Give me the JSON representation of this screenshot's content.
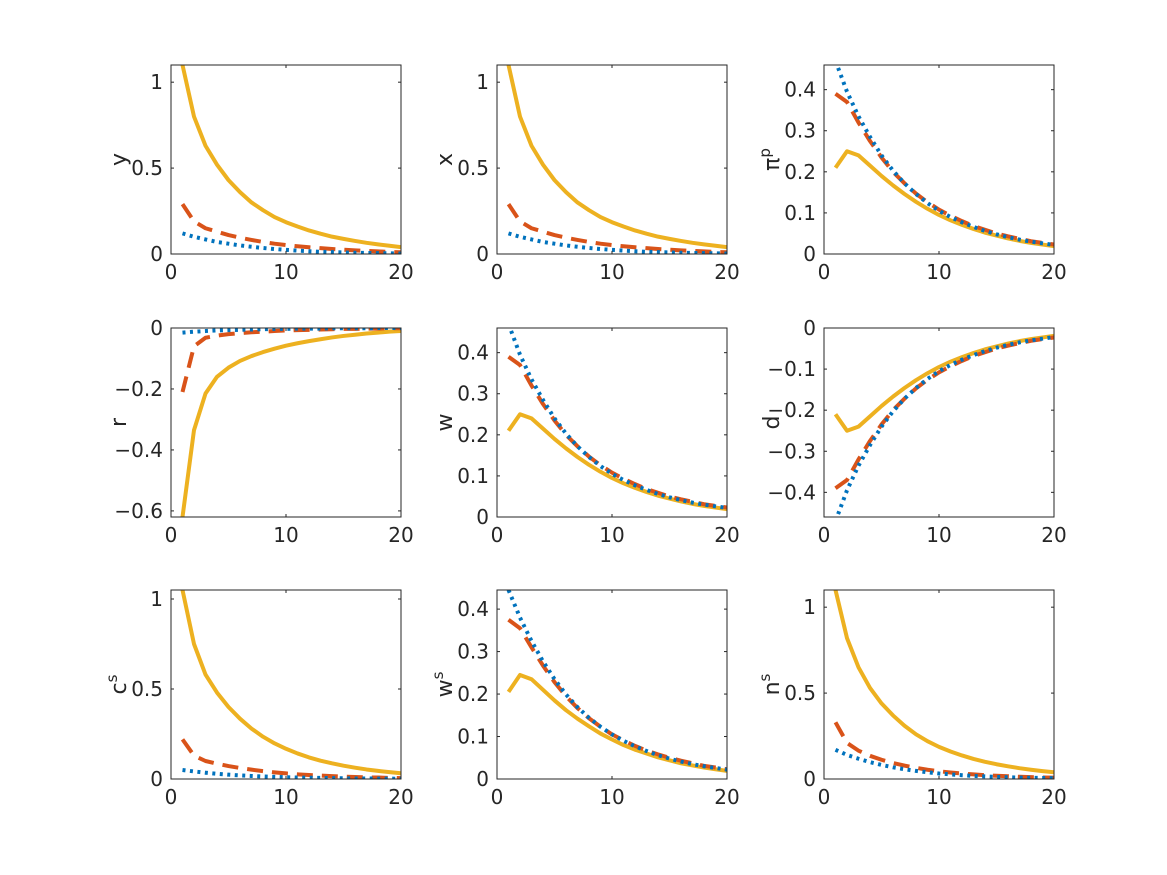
{
  "chart_data": [
    {
      "type": "line",
      "ylabel": "y",
      "ylabel_sup": "",
      "xlim": [
        0,
        20
      ],
      "ylim": [
        0,
        1.1
      ],
      "xticks": [
        0,
        10,
        20
      ],
      "yticks": [
        0,
        0.5,
        1
      ],
      "ytick_labels": [
        "0",
        "0.5",
        "1"
      ],
      "series": [
        {
          "style": "solid",
          "color": "#EDB120",
          "values": [
            1.1,
            0.8,
            0.63,
            0.52,
            0.43,
            0.36,
            0.3,
            0.255,
            0.215,
            0.185,
            0.16,
            0.137,
            0.118,
            0.101,
            0.088,
            0.076,
            0.065,
            0.056,
            0.048,
            0.04
          ]
        },
        {
          "style": "dashed",
          "color": "#D95319",
          "values": [
            0.29,
            0.19,
            0.15,
            0.13,
            0.11,
            0.095,
            0.082,
            0.07,
            0.06,
            0.052,
            0.045,
            0.039,
            0.034,
            0.029,
            0.025,
            0.021,
            0.018,
            0.015,
            0.012,
            0.01
          ]
        },
        {
          "style": "dotted",
          "color": "#0072BD",
          "values": [
            0.12,
            0.1,
            0.085,
            0.07,
            0.06,
            0.05,
            0.042,
            0.035,
            0.029,
            0.024,
            0.02,
            0.016,
            0.013,
            0.011,
            0.009,
            0.007,
            0.006,
            0.005,
            0.004,
            0.003
          ]
        }
      ]
    },
    {
      "type": "line",
      "ylabel": "x",
      "ylabel_sup": "",
      "xlim": [
        0,
        20
      ],
      "ylim": [
        0,
        1.1
      ],
      "xticks": [
        0,
        10,
        20
      ],
      "yticks": [
        0,
        0.5,
        1
      ],
      "ytick_labels": [
        "0",
        "0.5",
        "1"
      ],
      "series": [
        {
          "style": "solid",
          "color": "#EDB120",
          "values": [
            1.1,
            0.8,
            0.63,
            0.52,
            0.43,
            0.36,
            0.3,
            0.255,
            0.215,
            0.185,
            0.16,
            0.137,
            0.118,
            0.101,
            0.088,
            0.076,
            0.065,
            0.056,
            0.048,
            0.04
          ]
        },
        {
          "style": "dashed",
          "color": "#D95319",
          "values": [
            0.29,
            0.19,
            0.15,
            0.13,
            0.11,
            0.095,
            0.082,
            0.07,
            0.06,
            0.052,
            0.045,
            0.039,
            0.034,
            0.029,
            0.025,
            0.021,
            0.018,
            0.015,
            0.012,
            0.01
          ]
        },
        {
          "style": "dotted",
          "color": "#0072BD",
          "values": [
            0.12,
            0.1,
            0.085,
            0.07,
            0.06,
            0.05,
            0.042,
            0.035,
            0.029,
            0.024,
            0.02,
            0.016,
            0.013,
            0.011,
            0.009,
            0.007,
            0.006,
            0.005,
            0.004,
            0.003
          ]
        }
      ]
    },
    {
      "type": "line",
      "ylabel": "π",
      "ylabel_sup": "p",
      "xlim": [
        0,
        20
      ],
      "ylim": [
        0,
        0.46
      ],
      "xticks": [
        0,
        10,
        20
      ],
      "yticks": [
        0,
        0.1,
        0.2,
        0.3,
        0.4
      ],
      "ytick_labels": [
        "0",
        "0.1",
        "0.2",
        "0.3",
        "0.4"
      ],
      "series": [
        {
          "style": "solid",
          "color": "#EDB120",
          "values": [
            0.21,
            0.25,
            0.24,
            0.215,
            0.19,
            0.167,
            0.146,
            0.127,
            0.11,
            0.095,
            0.082,
            0.071,
            0.061,
            0.052,
            0.045,
            0.038,
            0.032,
            0.027,
            0.023,
            0.019
          ]
        },
        {
          "style": "dashed",
          "color": "#D95319",
          "values": [
            0.39,
            0.37,
            0.32,
            0.275,
            0.235,
            0.2,
            0.172,
            0.147,
            0.126,
            0.108,
            0.093,
            0.08,
            0.068,
            0.059,
            0.05,
            0.043,
            0.037,
            0.031,
            0.027,
            0.023
          ]
        },
        {
          "style": "dotted",
          "color": "#0072BD",
          "values": [
            0.47,
            0.395,
            0.335,
            0.285,
            0.24,
            0.203,
            0.172,
            0.146,
            0.124,
            0.105,
            0.09,
            0.077,
            0.066,
            0.056,
            0.048,
            0.041,
            0.035,
            0.03,
            0.026,
            0.022
          ]
        }
      ]
    },
    {
      "type": "line",
      "ylabel": "r",
      "ylabel_sup": "",
      "xlim": [
        0,
        20
      ],
      "ylim": [
        -0.62,
        0
      ],
      "xticks": [
        0,
        10,
        20
      ],
      "yticks": [
        -0.6,
        -0.4,
        -0.2,
        0
      ],
      "ytick_labels": [
        "−0.6",
        "−0.4",
        "−0.2",
        "0"
      ],
      "series": [
        {
          "style": "solid",
          "color": "#EDB120",
          "values": [
            -0.62,
            -0.335,
            -0.215,
            -0.16,
            -0.13,
            -0.108,
            -0.092,
            -0.079,
            -0.068,
            -0.058,
            -0.05,
            -0.043,
            -0.037,
            -0.031,
            -0.026,
            -0.022,
            -0.018,
            -0.015,
            -0.012,
            -0.01
          ]
        },
        {
          "style": "dashed",
          "color": "#D95319",
          "values": [
            -0.21,
            -0.06,
            -0.032,
            -0.025,
            -0.02,
            -0.017,
            -0.014,
            -0.012,
            -0.01,
            -0.008,
            -0.007,
            -0.006,
            -0.005,
            -0.004,
            -0.003,
            -0.003,
            -0.002,
            -0.002,
            -0.001,
            -0.001
          ]
        },
        {
          "style": "dotted",
          "color": "#0072BD",
          "values": [
            -0.015,
            -0.012,
            -0.01,
            -0.008,
            -0.007,
            -0.006,
            -0.005,
            -0.004,
            -0.003,
            -0.003,
            -0.002,
            -0.002,
            -0.002,
            -0.001,
            -0.001,
            -0.001,
            -0.001,
            0,
            0,
            0
          ]
        }
      ]
    },
    {
      "type": "line",
      "ylabel": "w",
      "ylabel_sup": "",
      "xlim": [
        0,
        20
      ],
      "ylim": [
        0,
        0.46
      ],
      "xticks": [
        0,
        10,
        20
      ],
      "yticks": [
        0,
        0.1,
        0.2,
        0.3,
        0.4
      ],
      "ytick_labels": [
        "0",
        "0.1",
        "0.2",
        "0.3",
        "0.4"
      ],
      "series": [
        {
          "style": "solid",
          "color": "#EDB120",
          "values": [
            0.21,
            0.25,
            0.24,
            0.215,
            0.19,
            0.167,
            0.146,
            0.127,
            0.11,
            0.095,
            0.082,
            0.071,
            0.061,
            0.052,
            0.045,
            0.038,
            0.032,
            0.027,
            0.023,
            0.019
          ]
        },
        {
          "style": "dashed",
          "color": "#D95319",
          "values": [
            0.39,
            0.37,
            0.32,
            0.275,
            0.235,
            0.2,
            0.172,
            0.147,
            0.126,
            0.108,
            0.093,
            0.08,
            0.068,
            0.059,
            0.05,
            0.043,
            0.037,
            0.031,
            0.027,
            0.023
          ]
        },
        {
          "style": "dotted",
          "color": "#0072BD",
          "values": [
            0.47,
            0.395,
            0.335,
            0.285,
            0.24,
            0.203,
            0.172,
            0.146,
            0.124,
            0.105,
            0.09,
            0.077,
            0.066,
            0.056,
            0.048,
            0.041,
            0.035,
            0.03,
            0.026,
            0.022
          ]
        }
      ]
    },
    {
      "type": "line",
      "ylabel": "d",
      "ylabel_sup": "",
      "xlim": [
        0,
        20
      ],
      "ylim": [
        -0.46,
        0
      ],
      "xticks": [
        0,
        10,
        20
      ],
      "yticks": [
        -0.4,
        -0.3,
        -0.2,
        -0.1,
        0
      ],
      "ytick_labels": [
        "−0.4",
        "−0.3",
        "−0.2",
        "−0.1",
        "0"
      ],
      "series": [
        {
          "style": "solid",
          "color": "#EDB120",
          "values": [
            -0.21,
            -0.25,
            -0.24,
            -0.215,
            -0.19,
            -0.167,
            -0.146,
            -0.127,
            -0.11,
            -0.095,
            -0.082,
            -0.071,
            -0.061,
            -0.052,
            -0.045,
            -0.038,
            -0.032,
            -0.027,
            -0.023,
            -0.019
          ]
        },
        {
          "style": "dashed",
          "color": "#D95319",
          "values": [
            -0.39,
            -0.37,
            -0.32,
            -0.275,
            -0.235,
            -0.2,
            -0.172,
            -0.147,
            -0.126,
            -0.108,
            -0.093,
            -0.08,
            -0.068,
            -0.059,
            -0.05,
            -0.043,
            -0.037,
            -0.031,
            -0.027,
            -0.023
          ]
        },
        {
          "style": "dotted",
          "color": "#0072BD",
          "values": [
            -0.47,
            -0.395,
            -0.335,
            -0.285,
            -0.24,
            -0.203,
            -0.172,
            -0.146,
            -0.124,
            -0.105,
            -0.09,
            -0.077,
            -0.066,
            -0.056,
            -0.048,
            -0.041,
            -0.035,
            -0.03,
            -0.026,
            -0.022
          ]
        }
      ]
    },
    {
      "type": "line",
      "ylabel": "c",
      "ylabel_sup": "s",
      "xlim": [
        0,
        20
      ],
      "ylim": [
        0,
        1.05
      ],
      "xticks": [
        0,
        10,
        20
      ],
      "yticks": [
        0,
        0.5,
        1
      ],
      "ytick_labels": [
        "0",
        "0.5",
        "1"
      ],
      "series": [
        {
          "style": "solid",
          "color": "#EDB120",
          "values": [
            1.05,
            0.75,
            0.58,
            0.48,
            0.4,
            0.335,
            0.28,
            0.235,
            0.198,
            0.168,
            0.142,
            0.12,
            0.102,
            0.087,
            0.074,
            0.063,
            0.053,
            0.045,
            0.038,
            0.032
          ]
        },
        {
          "style": "dashed",
          "color": "#D95319",
          "values": [
            0.22,
            0.13,
            0.1,
            0.085,
            0.072,
            0.061,
            0.052,
            0.044,
            0.037,
            0.031,
            0.026,
            0.022,
            0.019,
            0.016,
            0.013,
            0.011,
            0.009,
            0.008,
            0.006,
            0.005
          ]
        },
        {
          "style": "dotted",
          "color": "#0072BD",
          "values": [
            0.05,
            0.042,
            0.035,
            0.029,
            0.024,
            0.02,
            0.017,
            0.014,
            0.012,
            0.01,
            0.008,
            0.007,
            0.006,
            0.005,
            0.004,
            0.003,
            0.003,
            0.002,
            0.002,
            0.001
          ]
        }
      ]
    },
    {
      "type": "line",
      "ylabel": "w",
      "ylabel_sup": "s",
      "xlim": [
        0,
        20
      ],
      "ylim": [
        0,
        0.445
      ],
      "xticks": [
        0,
        10,
        20
      ],
      "yticks": [
        0,
        0.1,
        0.2,
        0.3,
        0.4
      ],
      "ytick_labels": [
        "0",
        "0.1",
        "0.2",
        "0.3",
        "0.4"
      ],
      "series": [
        {
          "style": "solid",
          "color": "#EDB120",
          "values": [
            0.205,
            0.245,
            0.235,
            0.21,
            0.185,
            0.162,
            0.142,
            0.124,
            0.107,
            0.093,
            0.08,
            0.069,
            0.06,
            0.051,
            0.044,
            0.037,
            0.032,
            0.027,
            0.023,
            0.019
          ]
        },
        {
          "style": "dashed",
          "color": "#D95319",
          "values": [
            0.375,
            0.355,
            0.31,
            0.267,
            0.228,
            0.195,
            0.167,
            0.143,
            0.123,
            0.105,
            0.091,
            0.078,
            0.067,
            0.058,
            0.05,
            0.043,
            0.037,
            0.031,
            0.027,
            0.023
          ]
        },
        {
          "style": "dotted",
          "color": "#0072BD",
          "values": [
            0.445,
            0.38,
            0.325,
            0.277,
            0.235,
            0.199,
            0.169,
            0.144,
            0.123,
            0.105,
            0.09,
            0.077,
            0.066,
            0.056,
            0.048,
            0.041,
            0.035,
            0.03,
            0.026,
            0.022
          ]
        }
      ]
    },
    {
      "type": "line",
      "ylabel": "n",
      "ylabel_sup": "s",
      "xlim": [
        0,
        20
      ],
      "ylim": [
        0,
        1.1
      ],
      "xticks": [
        0,
        10,
        20
      ],
      "yticks": [
        0,
        0.5,
        1
      ],
      "ytick_labels": [
        "0",
        "0.5",
        "1"
      ],
      "series": [
        {
          "style": "solid",
          "color": "#EDB120",
          "values": [
            1.1,
            0.82,
            0.65,
            0.53,
            0.44,
            0.37,
            0.31,
            0.26,
            0.22,
            0.187,
            0.16,
            0.137,
            0.117,
            0.1,
            0.086,
            0.074,
            0.063,
            0.054,
            0.046,
            0.039
          ]
        },
        {
          "style": "dashed",
          "color": "#D95319",
          "values": [
            0.33,
            0.21,
            0.165,
            0.135,
            0.112,
            0.093,
            0.078,
            0.065,
            0.054,
            0.045,
            0.038,
            0.032,
            0.027,
            0.022,
            0.019,
            0.016,
            0.013,
            0.011,
            0.009,
            0.008
          ]
        },
        {
          "style": "dotted",
          "color": "#0072BD",
          "values": [
            0.17,
            0.14,
            0.118,
            0.098,
            0.082,
            0.068,
            0.057,
            0.047,
            0.039,
            0.032,
            0.027,
            0.022,
            0.018,
            0.015,
            0.012,
            0.01,
            0.008,
            0.007,
            0.006,
            0.005
          ]
        }
      ]
    }
  ]
}
